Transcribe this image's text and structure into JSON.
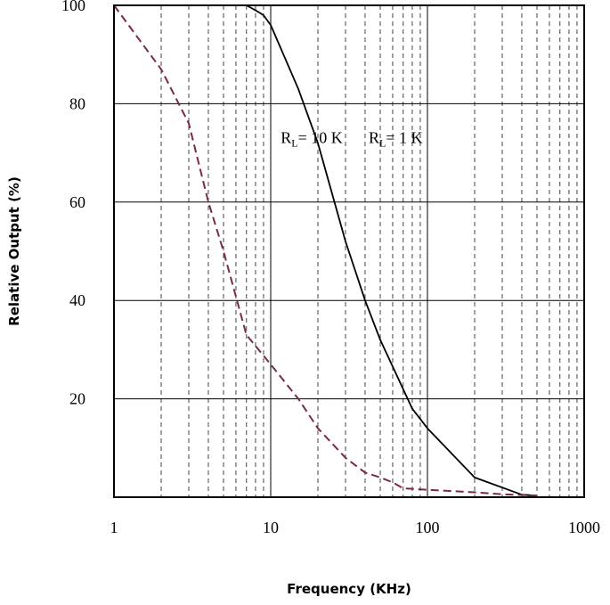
{
  "chart_data": {
    "type": "line",
    "title": "",
    "xlabel": "Frequency (KHz)",
    "ylabel": "Relative Output (%)",
    "x_scale": "log",
    "xlim": [
      1,
      1000
    ],
    "ylim": [
      0,
      100
    ],
    "x_ticks": [
      "1",
      "10",
      "100",
      "1000"
    ],
    "y_ticks": [
      "20",
      "40",
      "60",
      "80",
      "100"
    ],
    "grid": true,
    "colors": {
      "solid": "#000000",
      "dashed": "#7a2a44"
    },
    "annotations": [
      {
        "label_main": "R",
        "label_sub": "L",
        "label_rest": "= 10 K",
        "x": 11,
        "y": 72
      },
      {
        "label_main": "R",
        "label_sub": "L",
        "label_rest": "= 1 K",
        "x": 40,
        "y": 72
      }
    ],
    "series": [
      {
        "style": "solid",
        "x": [
          1,
          7,
          8,
          9,
          10,
          15,
          20,
          30,
          40,
          50,
          70,
          80,
          100,
          200,
          400,
          500
        ],
        "y": [
          100,
          100,
          99,
          98,
          96,
          83,
          72,
          52,
          40,
          32,
          22,
          18,
          14,
          4,
          0.5,
          0.3
        ]
      },
      {
        "style": "dashed",
        "x": [
          1,
          2,
          3,
          4,
          5,
          7,
          10,
          15,
          20,
          30,
          40,
          50,
          60,
          70,
          100,
          200,
          300,
          500
        ],
        "y": [
          100,
          87,
          76,
          60,
          50,
          33,
          27,
          20,
          14,
          8,
          5,
          4,
          3,
          1.8,
          1.5,
          1.0,
          0.6,
          0.3
        ]
      }
    ]
  }
}
